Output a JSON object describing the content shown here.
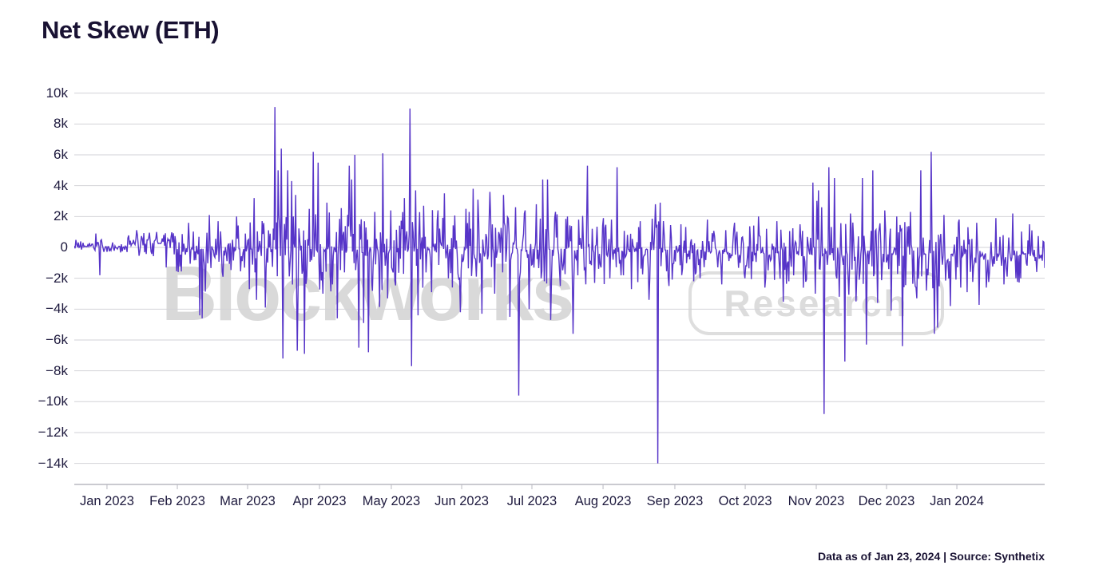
{
  "title": "Net Skew (ETH)",
  "footer": "Data as of Jan 23, 2024 | Source: Synthetix",
  "watermark": {
    "brand": "Blockworks",
    "sub": "Research"
  },
  "colors": {
    "line": "#5634c8",
    "title_text": "#191233",
    "axis_text": "#1e1a3e",
    "grid": "#d2d2d7",
    "axis": "#b8b8c0",
    "watermark": "#d9d9d9",
    "background": "#ffffff"
  },
  "chart_data": {
    "type": "line",
    "title": "Net Skew (ETH)",
    "xlabel": "",
    "ylabel": "",
    "unit": "ETH",
    "legend": "none",
    "grid": "horizontal",
    "ylim": [
      -14000,
      10000
    ],
    "x_domain": [
      "late Dec 2022",
      "Jan 23, 2024"
    ],
    "y_ticks": [
      {
        "v": 10000,
        "label": "10k"
      },
      {
        "v": 8000,
        "label": "8k"
      },
      {
        "v": 6000,
        "label": "6k"
      },
      {
        "v": 4000,
        "label": "4k"
      },
      {
        "v": 2000,
        "label": "2k"
      },
      {
        "v": 0,
        "label": "0"
      },
      {
        "v": -2000,
        "label": "−2k"
      },
      {
        "v": -4000,
        "label": "−4k"
      },
      {
        "v": -6000,
        "label": "−6k"
      },
      {
        "v": -8000,
        "label": "−8k"
      },
      {
        "v": -10000,
        "label": "−10k"
      },
      {
        "v": -12000,
        "label": "−12k"
      },
      {
        "v": -14000,
        "label": "−14k"
      }
    ],
    "x_ticks": [
      {
        "f": 0.0337,
        "label": "Jan 2023"
      },
      {
        "f": 0.1062,
        "label": "Feb 2023"
      },
      {
        "f": 0.1786,
        "label": "Mar 2023"
      },
      {
        "f": 0.2527,
        "label": "Apr 2023"
      },
      {
        "f": 0.3267,
        "label": "May 2023"
      },
      {
        "f": 0.3992,
        "label": "Jun 2023"
      },
      {
        "f": 0.4716,
        "label": "Jul 2023"
      },
      {
        "f": 0.5449,
        "label": "Aug 2023"
      },
      {
        "f": 0.6189,
        "label": "Sep 2023"
      },
      {
        "f": 0.6914,
        "label": "Oct 2023"
      },
      {
        "f": 0.7646,
        "label": "Nov 2023"
      },
      {
        "f": 0.837,
        "label": "Dec 2023"
      },
      {
        "f": 0.9095,
        "label": "Jan 2024"
      }
    ],
    "samples": 1215,
    "seed": 20240123,
    "noise_segments": [
      [
        0.0,
        0.055,
        0.05,
        0.22
      ],
      [
        0.055,
        0.105,
        0.25,
        0.45
      ],
      [
        0.105,
        0.165,
        -0.1,
        0.75
      ],
      [
        0.165,
        0.21,
        -0.1,
        0.95
      ],
      [
        0.21,
        0.33,
        -0.15,
        1.3
      ],
      [
        0.33,
        0.46,
        -0.1,
        1.2
      ],
      [
        0.46,
        0.62,
        -0.15,
        1.1
      ],
      [
        0.62,
        0.73,
        -0.35,
        0.85
      ],
      [
        0.73,
        0.92,
        -0.45,
        1.05
      ],
      [
        0.92,
        1.001,
        -0.55,
        0.9
      ]
    ],
    "spikes_k": [
      [
        0.022,
        0.9
      ],
      [
        0.026,
        -1.8
      ],
      [
        0.085,
        1.0
      ],
      [
        0.095,
        -1.3
      ],
      [
        0.118,
        1.6
      ],
      [
        0.129,
        -4.4
      ],
      [
        0.132,
        -4.6
      ],
      [
        0.139,
        2.1
      ],
      [
        0.148,
        1.7
      ],
      [
        0.153,
        -1.9
      ],
      [
        0.167,
        2.0
      ],
      [
        0.18,
        -2.7
      ],
      [
        0.185,
        3.2
      ],
      [
        0.188,
        -3.4
      ],
      [
        0.197,
        -3.9
      ],
      [
        0.207,
        9.1
      ],
      [
        0.21,
        5.0
      ],
      [
        0.213,
        6.4
      ],
      [
        0.215,
        -7.2
      ],
      [
        0.22,
        5.0
      ],
      [
        0.224,
        4.3
      ],
      [
        0.228,
        3.4
      ],
      [
        0.23,
        -6.7
      ],
      [
        0.237,
        -6.9
      ],
      [
        0.242,
        2.5
      ],
      [
        0.246,
        6.2
      ],
      [
        0.251,
        5.5
      ],
      [
        0.256,
        -3.0
      ],
      [
        0.26,
        2.9
      ],
      [
        0.266,
        -2.4
      ],
      [
        0.271,
        -4.6
      ],
      [
        0.283,
        5.3
      ],
      [
        0.286,
        4.4
      ],
      [
        0.289,
        6.0
      ],
      [
        0.293,
        -6.5
      ],
      [
        0.298,
        -4.9
      ],
      [
        0.303,
        -6.8
      ],
      [
        0.31,
        2.3
      ],
      [
        0.318,
        6.1
      ],
      [
        0.323,
        -3.3
      ],
      [
        0.326,
        2.4
      ],
      [
        0.34,
        3.2
      ],
      [
        0.346,
        9.0
      ],
      [
        0.348,
        -7.7
      ],
      [
        0.352,
        3.7
      ],
      [
        0.354,
        -4.4
      ],
      [
        0.36,
        2.7
      ],
      [
        0.368,
        -2.9
      ],
      [
        0.381,
        3.5
      ],
      [
        0.39,
        -2.6
      ],
      [
        0.398,
        -4.2
      ],
      [
        0.404,
        2.5
      ],
      [
        0.411,
        3.8
      ],
      [
        0.416,
        3.1
      ],
      [
        0.42,
        -4.3
      ],
      [
        0.428,
        3.6
      ],
      [
        0.433,
        -3.0
      ],
      [
        0.442,
        3.4
      ],
      [
        0.449,
        -4.5
      ],
      [
        0.455,
        2.6
      ],
      [
        0.458,
        -9.6
      ],
      [
        0.464,
        2.2
      ],
      [
        0.469,
        -4.0
      ],
      [
        0.476,
        2.8
      ],
      [
        0.483,
        4.4
      ],
      [
        0.488,
        4.4
      ],
      [
        0.491,
        -4.7
      ],
      [
        0.496,
        2.3
      ],
      [
        0.501,
        -2.5
      ],
      [
        0.508,
        2.0
      ],
      [
        0.514,
        -5.6
      ],
      [
        0.52,
        1.8
      ],
      [
        0.529,
        5.3
      ],
      [
        0.536,
        -2.3
      ],
      [
        0.545,
        1.9
      ],
      [
        0.552,
        -2.0
      ],
      [
        0.559,
        5.2
      ],
      [
        0.566,
        -1.8
      ],
      [
        0.574,
        -2.7
      ],
      [
        0.583,
        1.7
      ],
      [
        0.592,
        -3.4
      ],
      [
        0.599,
        2.8
      ],
      [
        0.601,
        -14.0
      ],
      [
        0.604,
        2.9
      ],
      [
        0.613,
        -2.5
      ],
      [
        0.625,
        1.5
      ],
      [
        0.638,
        -2.2
      ],
      [
        0.652,
        1.8
      ],
      [
        0.667,
        -2.4
      ],
      [
        0.68,
        1.6
      ],
      [
        0.691,
        -2.0
      ],
      [
        0.705,
        2.0
      ],
      [
        0.712,
        -2.6
      ],
      [
        0.724,
        1.7
      ],
      [
        0.736,
        -2.2
      ],
      [
        0.748,
        1.5
      ],
      [
        0.761,
        4.2
      ],
      [
        0.764,
        -3.0
      ],
      [
        0.767,
        3.7
      ],
      [
        0.77,
        2.6
      ],
      [
        0.773,
        -10.8
      ],
      [
        0.778,
        5.2
      ],
      [
        0.783,
        4.5
      ],
      [
        0.788,
        -3.2
      ],
      [
        0.794,
        -7.4
      ],
      [
        0.8,
        2.2
      ],
      [
        0.806,
        -3.5
      ],
      [
        0.812,
        4.5
      ],
      [
        0.816,
        -6.3
      ],
      [
        0.823,
        5.0
      ],
      [
        0.828,
        -3.6
      ],
      [
        0.835,
        2.4
      ],
      [
        0.842,
        -4.1
      ],
      [
        0.848,
        2.0
      ],
      [
        0.853,
        -6.4
      ],
      [
        0.862,
        2.3
      ],
      [
        0.868,
        -3.3
      ],
      [
        0.872,
        5.0
      ],
      [
        0.878,
        -2.8
      ],
      [
        0.883,
        6.2
      ],
      [
        0.886,
        -5.6
      ],
      [
        0.89,
        -5.2
      ],
      [
        0.896,
        2.1
      ],
      [
        0.903,
        -3.8
      ],
      [
        0.912,
        1.8
      ],
      [
        0.92,
        -2.9
      ],
      [
        0.93,
        1.6
      ],
      [
        0.94,
        -2.6
      ],
      [
        0.95,
        1.9
      ],
      [
        0.958,
        -2.4
      ],
      [
        0.967,
        2.2
      ],
      [
        0.975,
        -2.0
      ],
      [
        0.984,
        1.5
      ],
      [
        0.992,
        -1.6
      ]
    ]
  }
}
